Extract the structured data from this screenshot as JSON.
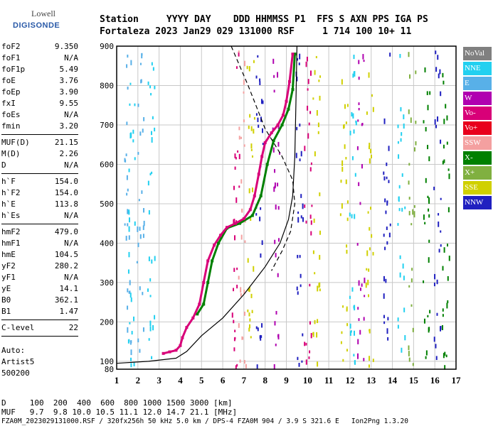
{
  "logo": {
    "brand": "Lowell",
    "product": "DIGISONDE"
  },
  "header": {
    "line1": "Station     YYYY DAY    DDD HHMMSS P1  FFS S AXN PPS IGA PS",
    "line2": "Fortaleza 2023 Jan29 029 131000 RSF     1 714 100 10+ 11"
  },
  "params_groups": [
    [
      [
        "foF2",
        "9.350"
      ],
      [
        "foF1",
        "N/A"
      ],
      [
        "foF1p",
        "5.49"
      ],
      [
        "foE",
        "3.76"
      ],
      [
        "foEp",
        "3.90"
      ],
      [
        "fxI",
        "9.55"
      ],
      [
        "foEs",
        "N/A"
      ],
      [
        "fmin",
        "3.20"
      ]
    ],
    [
      [
        "MUF(D)",
        "21.15"
      ],
      [
        "M(D)",
        "2.26"
      ],
      [
        "D",
        "N/A"
      ]
    ],
    [
      [
        "h`F",
        "154.0"
      ],
      [
        "h`F2",
        "154.0"
      ],
      [
        "h`E",
        "113.8"
      ],
      [
        "h`Es",
        "N/A"
      ]
    ],
    [
      [
        "hmF2",
        "479.0"
      ],
      [
        "hmF1",
        "N/A"
      ],
      [
        "hmE",
        "104.5"
      ],
      [
        "yF2",
        "280.2"
      ],
      [
        "yF1",
        "N/A"
      ],
      [
        "yE",
        "14.1"
      ],
      [
        "B0",
        "362.1"
      ],
      [
        "B1",
        "1.47"
      ]
    ],
    [
      [
        "C-level",
        "22"
      ]
    ]
  ],
  "auto": {
    "line1": "Auto:",
    "line2": "Artist5",
    "line3": "500200"
  },
  "bottom": {
    "d_row": "D     100  200  400  600  800 1000 1500 3000 [km]",
    "muf_row": "MUF   9.7  9.8 10.0 10.5 11.1 12.0 14.7 21.1 [MHz]",
    "footer": "FZA0M_2023029131000.RSF / 320fx256h 50 kHz 5.0 km / DPS-4 FZA0M 904 / 3.9 S 321.6 E   Ion2Png 1.3.20"
  },
  "legend": [
    {
      "label": "NoVal",
      "color": "#808080"
    },
    {
      "label": "NNE",
      "color": "#22d0f0"
    },
    {
      "label": "E",
      "color": "#58b0e8"
    },
    {
      "label": "W",
      "color": "#b000b0"
    },
    {
      "label": "Vo-",
      "color": "#d80078"
    },
    {
      "label": "Vo+",
      "color": "#e8001c"
    },
    {
      "label": "SSW",
      "color": "#f4a0a0"
    },
    {
      "label": "X-",
      "color": "#008000"
    },
    {
      "label": "X+",
      "color": "#80b040"
    },
    {
      "label": "SSE",
      "color": "#d0d000"
    },
    {
      "label": "NNW",
      "color": "#2020c0"
    }
  ],
  "chart_data": {
    "type": "scatter",
    "xlabel": "",
    "ylabel": "",
    "xlim": [
      1,
      17
    ],
    "ylim": [
      80,
      900
    ],
    "x_ticks": [
      1,
      2,
      3,
      4,
      5,
      6,
      7,
      8,
      9,
      10,
      11,
      12,
      13,
      14,
      15,
      16,
      17
    ],
    "y_ticks": [
      100,
      200,
      300,
      400,
      500,
      600,
      700,
      800,
      900
    ],
    "ordinary_trace": [
      [
        3.2,
        120
      ],
      [
        3.5,
        124
      ],
      [
        3.8,
        128
      ],
      [
        4.0,
        140
      ],
      [
        4.1,
        160
      ],
      [
        4.3,
        186
      ],
      [
        4.6,
        210
      ],
      [
        4.9,
        245
      ],
      [
        5.1,
        300
      ],
      [
        5.3,
        355
      ],
      [
        5.6,
        395
      ],
      [
        5.9,
        420
      ],
      [
        6.2,
        440
      ],
      [
        6.6,
        450
      ],
      [
        7.0,
        462
      ],
      [
        7.3,
        485
      ],
      [
        7.5,
        520
      ],
      [
        7.7,
        575
      ],
      [
        7.85,
        620
      ],
      [
        8.0,
        655
      ],
      [
        8.3,
        680
      ],
      [
        8.6,
        700
      ],
      [
        8.85,
        725
      ],
      [
        9.0,
        760
      ],
      [
        9.15,
        810
      ],
      [
        9.3,
        880
      ]
    ],
    "extraordinary_trace": [
      [
        4.8,
        220
      ],
      [
        5.1,
        245
      ],
      [
        5.3,
        300
      ],
      [
        5.5,
        355
      ],
      [
        5.8,
        400
      ],
      [
        6.2,
        438
      ],
      [
        6.8,
        450
      ],
      [
        7.4,
        470
      ],
      [
        7.8,
        520
      ],
      [
        8.1,
        600
      ],
      [
        8.4,
        660
      ],
      [
        8.8,
        700
      ],
      [
        9.1,
        740
      ],
      [
        9.3,
        790
      ],
      [
        9.4,
        880
      ]
    ],
    "profile_curve": [
      [
        1.0,
        95
      ],
      [
        2.5,
        100
      ],
      [
        3.8,
        108
      ],
      [
        4.3,
        125
      ],
      [
        5.0,
        165
      ],
      [
        6.0,
        210
      ],
      [
        7.0,
        270
      ],
      [
        8.0,
        340
      ],
      [
        8.7,
        400
      ],
      [
        9.1,
        460
      ],
      [
        9.3,
        520
      ],
      [
        9.4,
        620
      ],
      [
        9.45,
        750
      ],
      [
        9.5,
        900
      ]
    ],
    "dashed_curve": [
      [
        6.4,
        900
      ],
      [
        7.2,
        800
      ],
      [
        8.0,
        690
      ],
      [
        8.8,
        620
      ],
      [
        9.3,
        560
      ],
      [
        9.4,
        500
      ],
      [
        9.2,
        430
      ],
      [
        8.8,
        380
      ],
      [
        8.3,
        330
      ]
    ]
  }
}
